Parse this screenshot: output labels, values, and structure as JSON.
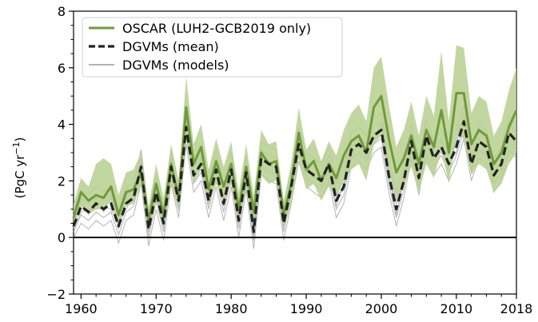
{
  "chart_data": {
    "type": "line",
    "title": "",
    "xlabel": "",
    "ylabel_prefix": "(PgC yr",
    "ylabel_sup": "−1",
    "ylabel_suffix": ")",
    "xlim": [
      1959,
      2018
    ],
    "ylim": [
      -2,
      8
    ],
    "xticks": [
      1960,
      1970,
      1980,
      1990,
      2000,
      2010,
      2018
    ],
    "yticks": [
      -2,
      0,
      2,
      4,
      6,
      8
    ],
    "ytick_labels": [
      "−2",
      "0",
      "2",
      "4",
      "6",
      "8"
    ],
    "grid": false,
    "legend_position": "top-left",
    "zero_line": 0,
    "colors": {
      "oscar": "#6f9a3c",
      "oscar_band": "#b7d08f",
      "dgvm_mean": "#222222",
      "dgvm_models": "#9a9a9a"
    },
    "years": [
      1959,
      1960,
      1961,
      1962,
      1963,
      1964,
      1965,
      1966,
      1967,
      1968,
      1969,
      1970,
      1971,
      1972,
      1973,
      1974,
      1975,
      1976,
      1977,
      1978,
      1979,
      1980,
      1981,
      1982,
      1983,
      1984,
      1985,
      1986,
      1987,
      1988,
      1989,
      1990,
      1991,
      1992,
      1993,
      1994,
      1995,
      1996,
      1997,
      1998,
      1999,
      2000,
      2001,
      2002,
      2003,
      2004,
      2005,
      2006,
      2007,
      2008,
      2009,
      2010,
      2011,
      2012,
      2013,
      2014,
      2015,
      2016,
      2017,
      2018
    ],
    "series": [
      {
        "name": "OSCAR (LUH2-GCB2019 only)",
        "style": "solid",
        "values": [
          0.7,
          1.6,
          1.3,
          1.5,
          1.4,
          1.8,
          0.8,
          1.6,
          1.7,
          2.3,
          0.6,
          1.9,
          0.8,
          2.6,
          1.4,
          4.6,
          2.6,
          3.2,
          1.7,
          2.7,
          1.8,
          2.6,
          1.0,
          2.5,
          0.9,
          3.0,
          2.6,
          2.7,
          0.8,
          1.9,
          3.7,
          2.4,
          2.7,
          2.0,
          2.6,
          2.1,
          2.9,
          3.4,
          3.6,
          3.0,
          4.6,
          5.0,
          3.5,
          2.3,
          2.8,
          3.6,
          2.6,
          3.8,
          3.2,
          4.5,
          3.0,
          5.1,
          5.1,
          3.3,
          3.8,
          3.6,
          2.6,
          3.0,
          3.9,
          4.5
        ]
      },
      {
        "name": "DGVMs (mean)",
        "style": "dashed",
        "values": [
          0.4,
          1.1,
          0.9,
          1.2,
          1.0,
          1.2,
          0.4,
          1.2,
          1.4,
          2.5,
          0.3,
          1.6,
          0.5,
          2.5,
          1.3,
          3.9,
          2.2,
          2.6,
          1.3,
          2.4,
          1.2,
          2.4,
          0.6,
          2.3,
          0.2,
          2.8,
          2.6,
          2.5,
          0.5,
          1.8,
          3.3,
          2.4,
          2.2,
          2.0,
          2.6,
          1.3,
          1.8,
          3.1,
          3.3,
          3.0,
          3.6,
          3.8,
          2.2,
          1.0,
          2.0,
          3.4,
          2.1,
          3.6,
          2.8,
          3.2,
          2.6,
          3.2,
          4.1,
          2.6,
          3.4,
          3.2,
          2.2,
          2.6,
          3.7,
          3.4
        ]
      }
    ],
    "oscar_band": {
      "lower": [
        0.3,
        1.1,
        0.8,
        1.0,
        1.0,
        1.3,
        0.3,
        1.1,
        1.2,
        1.8,
        0.2,
        1.3,
        0.3,
        1.9,
        0.9,
        3.5,
        1.9,
        2.4,
        1.1,
        1.9,
        1.2,
        1.9,
        0.5,
        1.7,
        0.4,
        2.2,
        1.9,
        2.0,
        0.3,
        1.2,
        2.8,
        1.7,
        1.9,
        1.3,
        1.8,
        1.4,
        2.0,
        2.4,
        2.6,
        2.0,
        3.3,
        3.6,
        2.4,
        1.4,
        1.8,
        2.5,
        1.6,
        2.6,
        2.1,
        3.1,
        1.9,
        3.6,
        3.5,
        2.2,
        2.6,
        2.4,
        1.6,
        1.9,
        2.6,
        3.0
      ],
      "upper": [
        1.2,
        2.1,
        1.8,
        2.6,
        2.8,
        2.6,
        1.5,
        2.3,
        2.4,
        3.0,
        1.1,
        2.6,
        1.4,
        3.3,
        2.0,
        5.7,
        3.3,
        4.0,
        2.4,
        3.5,
        2.5,
        3.4,
        1.6,
        3.3,
        1.5,
        3.8,
        3.3,
        3.4,
        1.3,
        2.6,
        4.6,
        3.1,
        3.5,
        2.7,
        3.4,
        2.9,
        3.8,
        4.4,
        4.7,
        4.1,
        6.0,
        6.4,
        4.7,
        3.2,
        3.8,
        4.8,
        3.6,
        5.0,
        4.3,
        6.6,
        4.1,
        6.8,
        6.7,
        4.4,
        5.0,
        4.8,
        3.6,
        4.1,
        5.2,
        6.0
      ]
    },
    "dgvm_models": [
      {
        "values": [
          0.6,
          1.4,
          1.2,
          1.5,
          1.3,
          1.5,
          0.6,
          1.5,
          1.6,
          2.8,
          0.6,
          1.9,
          0.7,
          2.8,
          1.6,
          4.3,
          2.5,
          2.9,
          1.6,
          2.8,
          1.5,
          2.7,
          0.9,
          2.6,
          0.5,
          3.1,
          2.9,
          2.8,
          0.8,
          2.1,
          3.6,
          2.7,
          2.5,
          2.3,
          2.9,
          1.6,
          2.1,
          3.4,
          3.6,
          3.3,
          3.9,
          4.1,
          2.5,
          1.3,
          2.3,
          3.7,
          2.4,
          3.9,
          3.1,
          3.5,
          2.9,
          3.5,
          4.4,
          2.9,
          3.7,
          3.5,
          2.5,
          2.9,
          4.0,
          3.7
        ]
      },
      {
        "values": [
          0.2,
          0.8,
          0.6,
          0.9,
          0.7,
          0.9,
          0.1,
          0.9,
          1.1,
          2.2,
          0.0,
          1.3,
          0.2,
          2.2,
          1.0,
          3.6,
          1.9,
          2.3,
          1.0,
          2.1,
          0.9,
          2.1,
          0.3,
          2.0,
          -0.1,
          2.5,
          2.3,
          2.2,
          0.2,
          1.5,
          3.0,
          2.1,
          1.9,
          1.7,
          2.3,
          1.0,
          1.5,
          2.8,
          3.0,
          2.7,
          3.3,
          3.5,
          1.9,
          0.7,
          1.7,
          3.1,
          1.8,
          3.3,
          2.5,
          2.9,
          2.3,
          2.9,
          3.8,
          2.3,
          3.1,
          2.9,
          1.9,
          2.3,
          3.4,
          3.1
        ]
      },
      {
        "values": [
          0.9,
          1.7,
          1.5,
          1.8,
          1.6,
          1.8,
          0.9,
          1.8,
          1.9,
          3.1,
          0.9,
          2.2,
          1.0,
          3.1,
          1.9,
          4.6,
          2.8,
          3.2,
          1.9,
          3.1,
          1.8,
          3.0,
          1.2,
          2.9,
          0.8,
          3.4,
          3.2,
          3.1,
          1.1,
          2.4,
          3.9,
          3.0,
          2.8,
          2.6,
          3.2,
          1.9,
          2.4,
          3.7,
          3.9,
          3.6,
          4.2,
          4.4,
          2.8,
          1.6,
          2.6,
          4.0,
          2.7,
          4.2,
          3.4,
          3.8,
          3.2,
          3.8,
          4.7,
          3.2,
          4.0,
          3.8,
          2.8,
          3.2,
          4.3,
          4.0
        ]
      },
      {
        "values": [
          0.0,
          0.5,
          0.3,
          0.6,
          0.4,
          0.6,
          -0.2,
          0.6,
          0.8,
          1.9,
          -0.3,
          1.0,
          -0.1,
          1.9,
          0.7,
          3.3,
          1.6,
          2.0,
          0.7,
          1.8,
          0.6,
          1.8,
          0.0,
          1.7,
          -0.4,
          2.2,
          2.0,
          1.9,
          -0.1,
          1.2,
          2.7,
          1.8,
          1.6,
          1.4,
          2.0,
          0.7,
          1.2,
          2.5,
          2.7,
          2.4,
          3.0,
          3.2,
          1.6,
          0.4,
          1.4,
          2.8,
          1.5,
          3.0,
          2.2,
          2.6,
          2.0,
          2.6,
          3.5,
          2.0,
          2.8,
          2.6,
          1.6,
          2.0,
          3.1,
          2.8
        ]
      },
      {
        "values": [
          0.5,
          1.3,
          0.8,
          1.4,
          0.9,
          1.4,
          0.3,
          1.4,
          1.3,
          2.7,
          0.2,
          1.8,
          0.4,
          2.7,
          1.2,
          4.1,
          2.1,
          2.8,
          1.2,
          2.6,
          1.1,
          2.6,
          0.5,
          2.5,
          0.1,
          3.0,
          2.5,
          2.7,
          0.4,
          2.0,
          3.2,
          2.6,
          2.1,
          2.2,
          2.5,
          1.5,
          1.7,
          3.3,
          3.2,
          3.2,
          3.5,
          4.0,
          2.1,
          1.2,
          1.9,
          3.6,
          2.0,
          3.8,
          2.7,
          3.4,
          2.5,
          3.4,
          4.0,
          2.8,
          3.3,
          3.4,
          2.1,
          2.8,
          3.6,
          3.6
        ]
      },
      {
        "values": [
          0.3,
          0.9,
          1.0,
          1.0,
          1.1,
          1.0,
          0.5,
          1.0,
          1.5,
          2.3,
          0.4,
          1.4,
          0.6,
          2.3,
          1.4,
          3.7,
          2.3,
          2.4,
          1.4,
          2.2,
          1.3,
          2.2,
          0.7,
          2.1,
          0.3,
          2.6,
          2.7,
          2.3,
          0.6,
          1.6,
          3.4,
          2.2,
          2.3,
          1.8,
          2.7,
          1.1,
          1.9,
          2.9,
          3.4,
          2.8,
          3.7,
          3.6,
          2.3,
          0.8,
          2.1,
          3.2,
          2.2,
          3.4,
          2.9,
          3.0,
          2.7,
          3.0,
          4.2,
          2.4,
          3.5,
          3.0,
          2.3,
          2.4,
          3.8,
          3.2
        ]
      }
    ]
  }
}
